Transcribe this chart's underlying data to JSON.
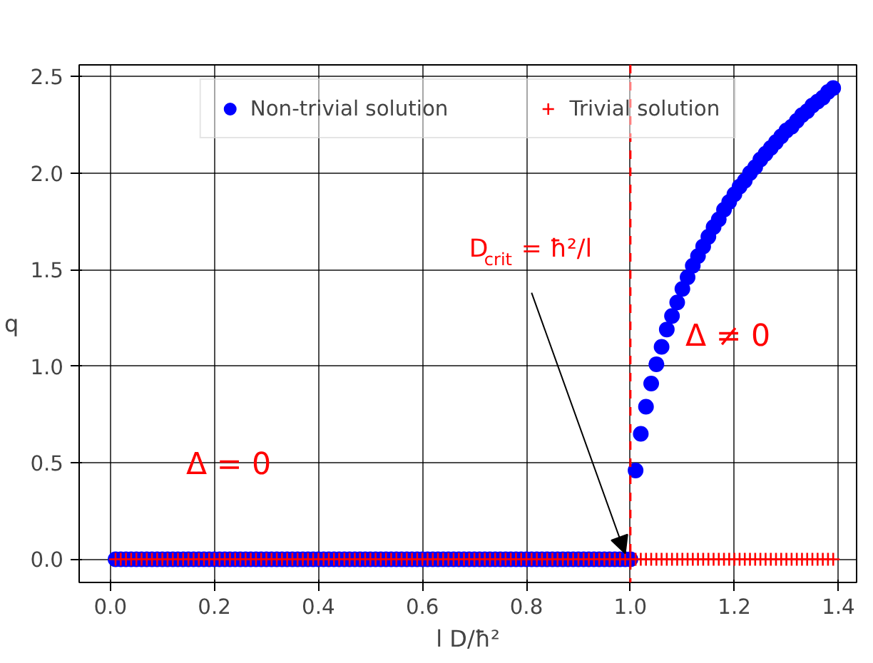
{
  "chart_data": {
    "type": "scatter",
    "xlabel": "l D/ħ²",
    "ylabel": "q",
    "x": [
      0.01,
      0.02,
      0.03,
      0.04,
      0.05,
      0.06,
      0.07,
      0.08,
      0.09,
      0.1,
      0.11,
      0.12,
      0.13,
      0.14,
      0.15,
      0.16,
      0.17,
      0.18,
      0.19,
      0.2,
      0.21,
      0.22,
      0.23,
      0.24,
      0.25,
      0.26,
      0.27,
      0.28,
      0.29,
      0.3,
      0.31,
      0.32,
      0.33,
      0.34,
      0.35,
      0.36,
      0.37,
      0.38,
      0.39,
      0.4,
      0.41,
      0.42,
      0.43,
      0.44,
      0.45,
      0.46,
      0.47,
      0.48,
      0.49,
      0.5,
      0.51,
      0.52,
      0.53,
      0.54,
      0.55,
      0.56,
      0.57,
      0.58,
      0.59,
      0.6,
      0.61,
      0.62,
      0.63,
      0.64,
      0.65,
      0.66,
      0.67,
      0.68,
      0.69,
      0.7,
      0.71,
      0.72,
      0.73,
      0.74,
      0.75,
      0.76,
      0.77,
      0.78,
      0.79,
      0.8,
      0.81,
      0.82,
      0.83,
      0.84,
      0.85,
      0.86,
      0.87,
      0.88,
      0.89,
      0.9,
      0.91,
      0.92,
      0.93,
      0.94,
      0.95,
      0.96,
      0.97,
      0.98,
      0.99,
      1.0,
      1.01,
      1.02,
      1.03,
      1.04,
      1.05,
      1.06,
      1.07,
      1.08,
      1.09,
      1.1,
      1.11,
      1.12,
      1.13,
      1.14,
      1.15,
      1.16,
      1.17,
      1.18,
      1.19,
      1.2,
      1.21,
      1.22,
      1.23,
      1.24,
      1.25,
      1.26,
      1.27,
      1.28,
      1.29,
      1.3,
      1.31,
      1.32,
      1.33,
      1.34,
      1.35,
      1.36,
      1.37,
      1.38,
      1.39
    ],
    "series": [
      {
        "name": "Non-trivial solution",
        "color": "#0000ff",
        "marker": "circle",
        "values": [
          0,
          0,
          0,
          0,
          0,
          0,
          0,
          0,
          0,
          0,
          0,
          0,
          0,
          0,
          0,
          0,
          0,
          0,
          0,
          0,
          0,
          0,
          0,
          0,
          0,
          0,
          0,
          0,
          0,
          0,
          0,
          0,
          0,
          0,
          0,
          0,
          0,
          0,
          0,
          0,
          0,
          0,
          0,
          0,
          0,
          0,
          0,
          0,
          0,
          0,
          0,
          0,
          0,
          0,
          0,
          0,
          0,
          0,
          0,
          0,
          0,
          0,
          0,
          0,
          0,
          0,
          0,
          0,
          0,
          0,
          0,
          0,
          0,
          0,
          0,
          0,
          0,
          0,
          0,
          0,
          0,
          0,
          0,
          0,
          0,
          0,
          0,
          0,
          0,
          0,
          0,
          0,
          0,
          0,
          0,
          0,
          0,
          0,
          0,
          0,
          0.46,
          0.65,
          0.79,
          0.91,
          1.01,
          1.1,
          1.19,
          1.26,
          1.33,
          1.4,
          1.46,
          1.52,
          1.57,
          1.62,
          1.67,
          1.72,
          1.76,
          1.81,
          1.85,
          1.89,
          1.93,
          1.96,
          2.0,
          2.03,
          2.07,
          2.1,
          2.13,
          2.16,
          2.19,
          2.22,
          2.24,
          2.27,
          2.3,
          2.32,
          2.35,
          2.37,
          2.39,
          2.42,
          2.44
        ]
      },
      {
        "name": "Trivial solution",
        "color": "#ff0000",
        "marker": "cross",
        "values": [
          0,
          0,
          0,
          0,
          0,
          0,
          0,
          0,
          0,
          0,
          0,
          0,
          0,
          0,
          0,
          0,
          0,
          0,
          0,
          0,
          0,
          0,
          0,
          0,
          0,
          0,
          0,
          0,
          0,
          0,
          0,
          0,
          0,
          0,
          0,
          0,
          0,
          0,
          0,
          0,
          0,
          0,
          0,
          0,
          0,
          0,
          0,
          0,
          0,
          0,
          0,
          0,
          0,
          0,
          0,
          0,
          0,
          0,
          0,
          0,
          0,
          0,
          0,
          0,
          0,
          0,
          0,
          0,
          0,
          0,
          0,
          0,
          0,
          0,
          0,
          0,
          0,
          0,
          0,
          0,
          0,
          0,
          0,
          0,
          0,
          0,
          0,
          0,
          0,
          0,
          0,
          0,
          0,
          0,
          0,
          0,
          0,
          0,
          0,
          0,
          0,
          0,
          0,
          0,
          0,
          0,
          0,
          0,
          0,
          0,
          0,
          0,
          0,
          0,
          0,
          0,
          0,
          0,
          0,
          0,
          0,
          0,
          0,
          0,
          0,
          0,
          0,
          0,
          0,
          0,
          0,
          0,
          0,
          0,
          0,
          0,
          0,
          0,
          0
        ]
      }
    ],
    "xlim": [
      -0.06,
      1.435
    ],
    "ylim": [
      -0.12,
      2.56
    ],
    "xticks": [
      {
        "value": 0,
        "label": "0.0"
      },
      0.2,
      0.4,
      0.6,
      0.8,
      {
        "value": 1,
        "label": "1.0"
      },
      1.2,
      1.4
    ],
    "yticks": [
      {
        "value": 0,
        "label": "0.0"
      },
      0.5,
      {
        "value": 1,
        "label": "1.0"
      },
      1.5,
      {
        "value": 2,
        "label": "2.0"
      },
      2.5
    ],
    "ref_lines": [
      {
        "axis": "x",
        "value": 1.0,
        "color": "#ff0000",
        "line_style": "dashed"
      }
    ],
    "annotations": [
      "Δ = 0",
      "Δ ≠ 0",
      {
        "text": "D$_{crit}$ = ħ²/l",
        "x": 0.99,
        "y": 0.03
      }
    ],
    "grid": true,
    "legend": "top"
  }
}
